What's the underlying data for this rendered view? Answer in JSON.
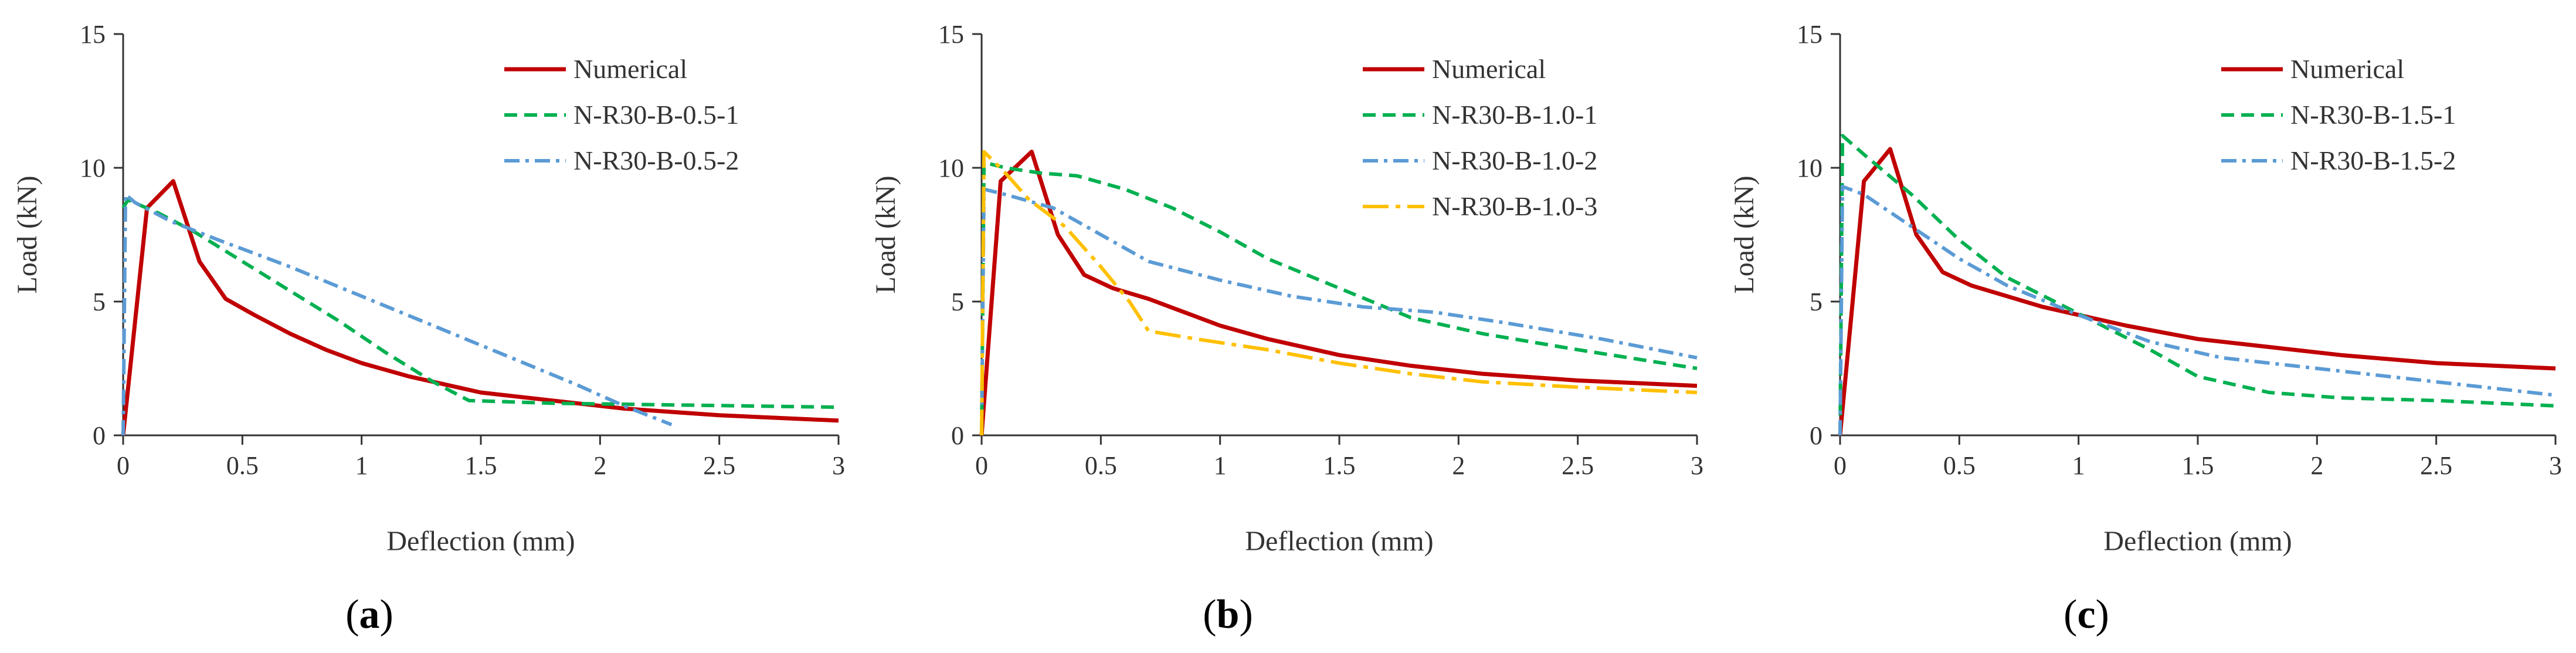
{
  "chart_data": [
    {
      "type": "line",
      "panel_label": "a",
      "xlabel": "Deflection (mm)",
      "ylabel": "Load (kN)",
      "xlim": [
        0,
        3
      ],
      "ylim": [
        0,
        15
      ],
      "xticks": [
        0,
        0.5,
        1,
        1.5,
        2,
        2.5,
        3
      ],
      "yticks": [
        0,
        5,
        10,
        15
      ],
      "xtick_labels": [
        "0",
        "0.5",
        "1",
        "1.5",
        "2",
        "2.5",
        "3"
      ],
      "ytick_labels": [
        "0",
        "5",
        "10",
        "15"
      ],
      "legend_position": "top-right",
      "series": [
        {
          "name": "Numerical",
          "color": "#c00000",
          "style": "solid",
          "x": [
            0,
            0.1,
            0.21,
            0.32,
            0.43,
            0.55,
            0.7,
            0.85,
            1.0,
            1.2,
            1.5,
            1.8,
            2.1,
            2.5,
            3.0
          ],
          "y": [
            0,
            8.5,
            9.5,
            6.5,
            5.1,
            4.5,
            3.8,
            3.2,
            2.7,
            2.2,
            1.6,
            1.3,
            1.0,
            0.75,
            0.55
          ]
        },
        {
          "name": "N-R30-B-0.5-1",
          "color": "#00b050",
          "style": "dash",
          "x": [
            0,
            0.02,
            0.15,
            0.3,
            0.5,
            0.7,
            0.9,
            1.1,
            1.3,
            1.45,
            1.8,
            2.2,
            2.6,
            3.0
          ],
          "y": [
            8.5,
            8.8,
            8.3,
            7.6,
            6.5,
            5.4,
            4.3,
            3.1,
            2.0,
            1.3,
            1.2,
            1.15,
            1.1,
            1.05
          ]
        },
        {
          "name": "N-R30-B-0.5-2",
          "color": "#5b9bd5",
          "style": "dashdot",
          "x": [
            0,
            0.01,
            0.05,
            0.2,
            0.4,
            0.7,
            1.0,
            1.3,
            1.6,
            1.9,
            2.1,
            2.3
          ],
          "y": [
            0,
            9.0,
            8.7,
            8.0,
            7.3,
            6.3,
            5.2,
            4.1,
            3.0,
            1.9,
            1.1,
            0.4
          ]
        }
      ]
    },
    {
      "type": "line",
      "panel_label": "b",
      "xlabel": "Deflection (mm)",
      "ylabel": "Load (kN)",
      "xlim": [
        0,
        3
      ],
      "ylim": [
        0,
        15
      ],
      "xticks": [
        0,
        0.5,
        1,
        1.5,
        2,
        2.5,
        3
      ],
      "yticks": [
        0,
        5,
        10,
        15
      ],
      "xtick_labels": [
        "0",
        "0.5",
        "1",
        "1.5",
        "2",
        "2.5",
        "3"
      ],
      "ytick_labels": [
        "0",
        "5",
        "10",
        "15"
      ],
      "legend_position": "top-right",
      "series": [
        {
          "name": "Numerical",
          "color": "#c00000",
          "style": "solid",
          "x": [
            0,
            0.08,
            0.21,
            0.32,
            0.43,
            0.55,
            0.7,
            0.85,
            1.0,
            1.2,
            1.5,
            1.8,
            2.1,
            2.5,
            3.0
          ],
          "y": [
            0,
            9.5,
            10.6,
            7.5,
            6.0,
            5.5,
            5.1,
            4.6,
            4.1,
            3.6,
            3.0,
            2.6,
            2.3,
            2.05,
            1.85
          ]
        },
        {
          "name": "N-R30-B-1.0-1",
          "color": "#00b050",
          "style": "dash",
          "x": [
            0,
            0.01,
            0.1,
            0.25,
            0.4,
            0.6,
            0.8,
            1.0,
            1.2,
            1.5,
            1.8,
            2.1,
            2.5,
            3.0
          ],
          "y": [
            0,
            10.2,
            10.0,
            9.8,
            9.7,
            9.2,
            8.5,
            7.6,
            6.6,
            5.5,
            4.4,
            3.8,
            3.2,
            2.5
          ]
        },
        {
          "name": "N-R30-B-1.0-2",
          "color": "#5b9bd5",
          "style": "dashdot",
          "x": [
            0,
            0.01,
            0.1,
            0.3,
            0.5,
            0.7,
            1.0,
            1.3,
            1.6,
            1.9,
            2.2,
            2.6,
            3.0
          ],
          "y": [
            0,
            9.2,
            9.0,
            8.5,
            7.5,
            6.5,
            5.8,
            5.2,
            4.8,
            4.6,
            4.2,
            3.6,
            2.9
          ]
        },
        {
          "name": "N-R30-B-1.0-3",
          "color": "#ffc000",
          "style": "longdashdot",
          "x": [
            0,
            0.01,
            0.1,
            0.2,
            0.35,
            0.5,
            0.62,
            0.7,
            0.9,
            1.2,
            1.5,
            1.8,
            2.1,
            2.5,
            3.0
          ],
          "y": [
            0,
            10.6,
            9.8,
            8.8,
            7.8,
            6.3,
            5.0,
            3.9,
            3.6,
            3.2,
            2.7,
            2.3,
            2.0,
            1.8,
            1.6
          ]
        }
      ]
    },
    {
      "type": "line",
      "panel_label": "c",
      "xlabel": "Deflection (mm)",
      "ylabel": "Load (kN)",
      "xlim": [
        0,
        3
      ],
      "ylim": [
        0,
        15
      ],
      "xticks": [
        0,
        0.5,
        1,
        1.5,
        2,
        2.5,
        3
      ],
      "yticks": [
        0,
        5,
        10,
        15
      ],
      "xtick_labels": [
        "0",
        "0.5",
        "1",
        "1.5",
        "2",
        "2.5",
        "3"
      ],
      "ytick_labels": [
        "0",
        "5",
        "10",
        "15"
      ],
      "legend_position": "top-right",
      "series": [
        {
          "name": "Numerical",
          "color": "#c00000",
          "style": "solid",
          "x": [
            0,
            0.1,
            0.21,
            0.32,
            0.43,
            0.55,
            0.7,
            0.85,
            1.0,
            1.2,
            1.5,
            1.8,
            2.1,
            2.5,
            3.0
          ],
          "y": [
            0,
            9.5,
            10.7,
            7.5,
            6.1,
            5.6,
            5.2,
            4.8,
            4.5,
            4.1,
            3.6,
            3.3,
            3.0,
            2.7,
            2.5
          ]
        },
        {
          "name": "N-R30-B-1.5-1",
          "color": "#00b050",
          "style": "dash",
          "x": [
            0,
            0.01,
            0.1,
            0.3,
            0.5,
            0.7,
            0.9,
            1.1,
            1.3,
            1.5,
            1.8,
            2.1,
            2.5,
            3.0
          ],
          "y": [
            0,
            11.2,
            10.5,
            9.0,
            7.3,
            5.9,
            5.0,
            4.1,
            3.2,
            2.2,
            1.6,
            1.4,
            1.3,
            1.1
          ]
        },
        {
          "name": "N-R30-B-1.5-2",
          "color": "#5b9bd5",
          "style": "dashdot",
          "x": [
            0,
            0.01,
            0.1,
            0.3,
            0.5,
            0.7,
            1.0,
            1.3,
            1.6,
            1.9,
            2.2,
            2.6,
            3.0
          ],
          "y": [
            0,
            9.3,
            9.0,
            7.8,
            6.6,
            5.6,
            4.5,
            3.5,
            2.9,
            2.6,
            2.3,
            1.9,
            1.5
          ]
        }
      ]
    }
  ]
}
